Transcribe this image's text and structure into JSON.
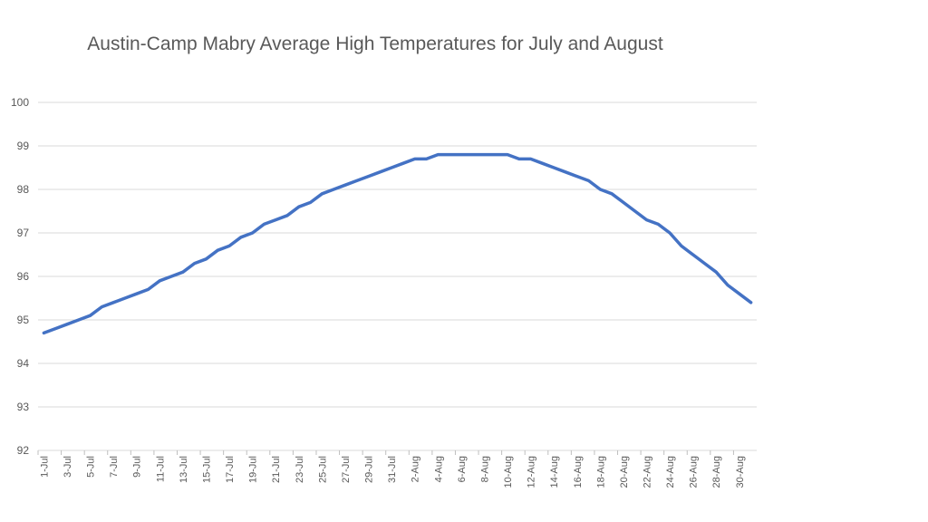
{
  "chart_data": {
    "type": "line",
    "title": "Austin-Camp Mabry Average High Temperatures for July and August",
    "xlabel": "",
    "ylabel": "",
    "ylim": [
      92,
      100
    ],
    "yticks": [
      92,
      93,
      94,
      95,
      96,
      97,
      98,
      99,
      100
    ],
    "grid": true,
    "legend": "none",
    "line_color": "#4472C4",
    "x": [
      "1-Jul",
      "2-Jul",
      "3-Jul",
      "4-Jul",
      "5-Jul",
      "6-Jul",
      "7-Jul",
      "8-Jul",
      "9-Jul",
      "10-Jul",
      "11-Jul",
      "12-Jul",
      "13-Jul",
      "14-Jul",
      "15-Jul",
      "16-Jul",
      "17-Jul",
      "18-Jul",
      "19-Jul",
      "20-Jul",
      "21-Jul",
      "22-Jul",
      "23-Jul",
      "24-Jul",
      "25-Jul",
      "26-Jul",
      "27-Jul",
      "28-Jul",
      "29-Jul",
      "30-Jul",
      "31-Jul",
      "1-Aug",
      "2-Aug",
      "3-Aug",
      "4-Aug",
      "5-Aug",
      "6-Aug",
      "7-Aug",
      "8-Aug",
      "9-Aug",
      "10-Aug",
      "11-Aug",
      "12-Aug",
      "13-Aug",
      "14-Aug",
      "15-Aug",
      "16-Aug",
      "17-Aug",
      "18-Aug",
      "19-Aug",
      "20-Aug",
      "21-Aug",
      "22-Aug",
      "23-Aug",
      "24-Aug",
      "25-Aug",
      "26-Aug",
      "27-Aug",
      "28-Aug",
      "29-Aug",
      "30-Aug",
      "31-Aug"
    ],
    "x_tick_labels": [
      "1-Jul",
      "3-Jul",
      "5-Jul",
      "7-Jul",
      "9-Jul",
      "11-Jul",
      "13-Jul",
      "15-Jul",
      "17-Jul",
      "19-Jul",
      "21-Jul",
      "23-Jul",
      "25-Jul",
      "27-Jul",
      "29-Jul",
      "31-Jul",
      "2-Aug",
      "4-Aug",
      "6-Aug",
      "8-Aug",
      "10-Aug",
      "12-Aug",
      "14-Aug",
      "16-Aug",
      "18-Aug",
      "20-Aug",
      "22-Aug",
      "24-Aug",
      "26-Aug",
      "28-Aug",
      "30-Aug"
    ],
    "series": [
      {
        "values": [
          94.7,
          94.8,
          94.9,
          95.0,
          95.1,
          95.3,
          95.4,
          95.5,
          95.6,
          95.7,
          95.9,
          96.0,
          96.1,
          96.3,
          96.4,
          96.6,
          96.7,
          96.9,
          97.0,
          97.2,
          97.3,
          97.4,
          97.6,
          97.7,
          97.9,
          98.0,
          98.1,
          98.2,
          98.3,
          98.4,
          98.5,
          98.6,
          98.7,
          98.7,
          98.8,
          98.8,
          98.8,
          98.8,
          98.8,
          98.8,
          98.8,
          98.7,
          98.7,
          98.6,
          98.5,
          98.4,
          98.3,
          98.2,
          98.0,
          97.9,
          97.7,
          97.5,
          97.3,
          97.2,
          97.0,
          96.7,
          96.5,
          96.3,
          96.1,
          95.8,
          95.6,
          95.4
        ]
      }
    ]
  }
}
